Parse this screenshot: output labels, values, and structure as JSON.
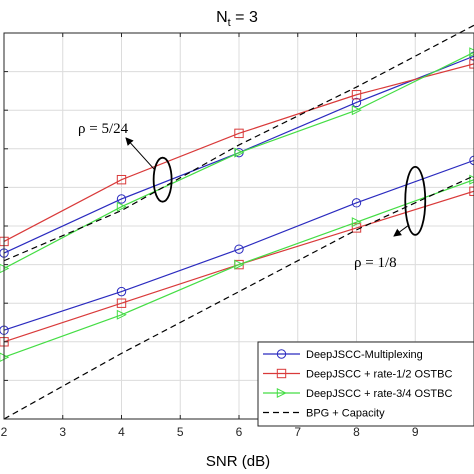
{
  "chart_data": {
    "type": "line",
    "title": "N",
    "title_sub": "t",
    "title_rest": " = 3",
    "xlabel": "SNR (dB)",
    "ylabel": "",
    "xlim": [
      2,
      10
    ],
    "ylim": [
      0,
      10
    ],
    "xticks": [
      2,
      3,
      4,
      5,
      6,
      7,
      8,
      9
    ],
    "grid": true,
    "legend_position": "bottom-right",
    "series": [
      {
        "name": "DeepJSCC-Multiplexing",
        "color": "#2b2bbf",
        "marker": "circle",
        "dash": "solid",
        "x": [
          2,
          4,
          6,
          8,
          10
        ],
        "y": [
          4.3,
          5.7,
          6.9,
          8.2,
          9.4
        ]
      },
      {
        "name": "",
        "color": "#2b2bbf",
        "marker": "circle",
        "dash": "solid",
        "x": [
          2,
          4,
          6,
          8,
          10
        ],
        "y": [
          2.3,
          3.3,
          4.4,
          5.6,
          6.7
        ]
      },
      {
        "name": "DeepJSCC + rate-1/2 OSTBC",
        "color": "#d93a3a",
        "marker": "square",
        "dash": "solid",
        "x": [
          2,
          4,
          6,
          8,
          10
        ],
        "y": [
          4.6,
          6.2,
          7.4,
          8.4,
          9.2
        ]
      },
      {
        "name": "",
        "color": "#d93a3a",
        "marker": "square",
        "dash": "solid",
        "x": [
          2,
          4,
          6,
          8,
          10
        ],
        "y": [
          2.0,
          3.0,
          4.0,
          4.95,
          5.9
        ]
      },
      {
        "name": "DeepJSCC + rate-3/4 OSTBC",
        "color": "#44dd44",
        "marker": "triangle-right",
        "dash": "solid",
        "x": [
          2,
          4,
          6,
          8,
          10
        ],
        "y": [
          3.9,
          5.5,
          6.9,
          8.0,
          9.5
        ]
      },
      {
        "name": "",
        "color": "#44dd44",
        "marker": "triangle-right",
        "dash": "solid",
        "x": [
          2,
          4,
          6,
          8,
          10
        ],
        "y": [
          1.6,
          2.7,
          4.0,
          5.1,
          6.2
        ]
      },
      {
        "name": "BPG + Capacity",
        "color": "#000000",
        "marker": "none",
        "dash": "dashed",
        "x": [
          2,
          4,
          6,
          8,
          10
        ],
        "y": [
          4.1,
          5.4,
          7.1,
          8.6,
          10.2
        ]
      },
      {
        "name": "",
        "color": "#000000",
        "marker": "none",
        "dash": "dashed",
        "x": [
          2,
          4,
          6,
          8,
          10
        ],
        "y": [
          0.0,
          1.7,
          3.3,
          4.9,
          6.3
        ]
      }
    ],
    "annotations": [
      {
        "text": "ρ = 5/24",
        "target_x": 4.7,
        "target_y": 6.2
      },
      {
        "text": "ρ = 1/8",
        "target_x": 9.0,
        "target_y": 5.6
      }
    ]
  }
}
